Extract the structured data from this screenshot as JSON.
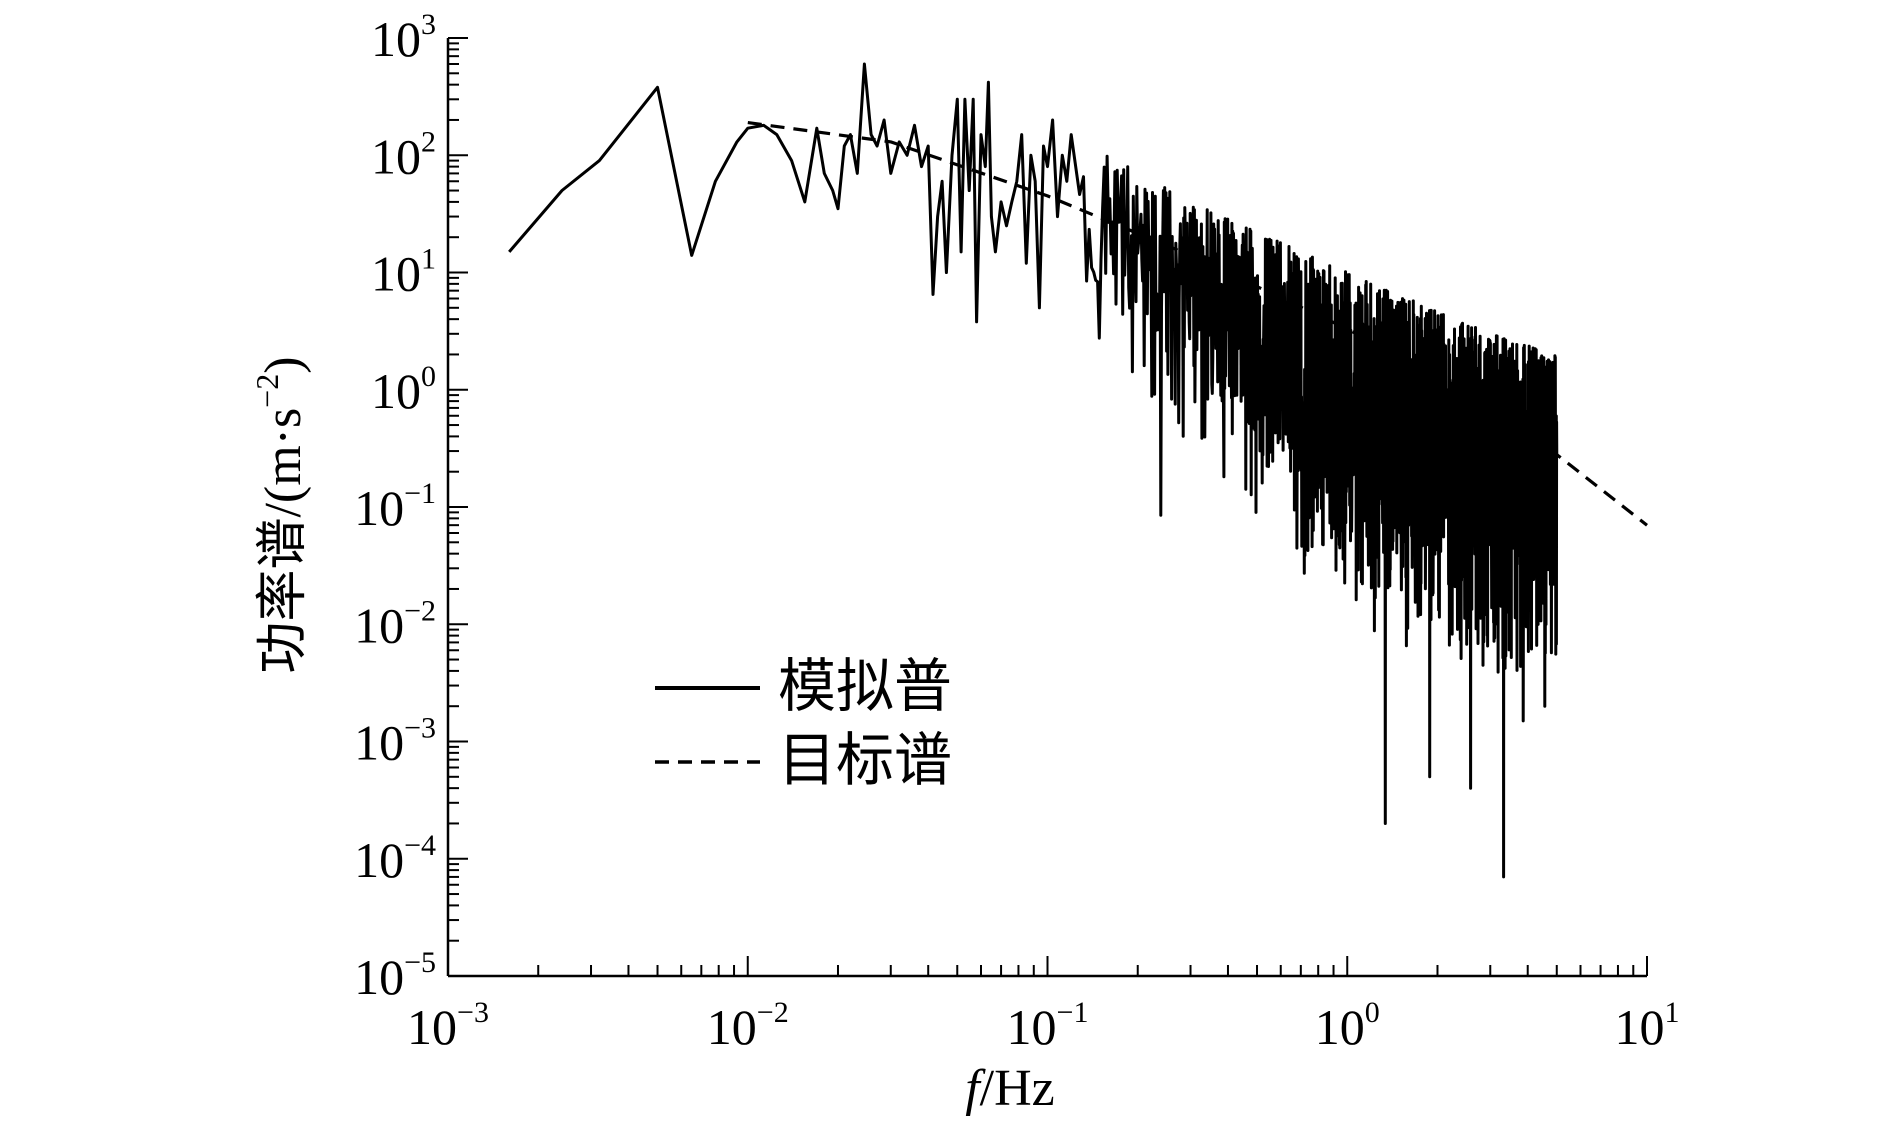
{
  "chart_data": {
    "type": "line",
    "title": "",
    "xlabel_italic": "f",
    "xlabel_unit": "/Hz",
    "ylabel_main": "功率谱/(m·s",
    "ylabel_sup": "−2",
    "ylabel_close": ")",
    "x_scale": "log",
    "y_scale": "log",
    "xlim": [
      0.001,
      10
    ],
    "ylim": [
      1e-05,
      1000
    ],
    "grid": false,
    "legend_position": "lower-left",
    "x_ticks": [
      {
        "value": 0.001,
        "base": "10",
        "exp": "−3"
      },
      {
        "value": 0.01,
        "base": "10",
        "exp": "−2"
      },
      {
        "value": 0.1,
        "base": "10",
        "exp": "−1"
      },
      {
        "value": 1,
        "base": "10",
        "exp": "0"
      },
      {
        "value": 10,
        "base": "10",
        "exp": "1"
      }
    ],
    "y_ticks": [
      {
        "value": 1e-05,
        "base": "10",
        "exp": "−5"
      },
      {
        "value": 0.0001,
        "base": "10",
        "exp": "−4"
      },
      {
        "value": 0.001,
        "base": "10",
        "exp": "−3"
      },
      {
        "value": 0.01,
        "base": "10",
        "exp": "−2"
      },
      {
        "value": 0.1,
        "base": "10",
        "exp": "−1"
      },
      {
        "value": 1,
        "base": "10",
        "exp": "0"
      },
      {
        "value": 10,
        "base": "10",
        "exp": "1"
      },
      {
        "value": 100,
        "base": "10",
        "exp": "2"
      },
      {
        "value": 1000,
        "base": "10",
        "exp": "3"
      }
    ],
    "series": [
      {
        "name": "模拟普",
        "style": "solid",
        "color": "#000000",
        "points": [
          [
            0.0016,
            15
          ],
          [
            0.0024,
            50
          ],
          [
            0.0032,
            90
          ],
          [
            0.005,
            380
          ],
          [
            0.0065,
            14
          ],
          [
            0.0078,
            60
          ],
          [
            0.0092,
            130
          ],
          [
            0.01,
            170
          ],
          [
            0.0113,
            180
          ],
          [
            0.0125,
            150
          ],
          [
            0.014,
            90
          ],
          [
            0.0155,
            40
          ],
          [
            0.017,
            170
          ],
          [
            0.018,
            70
          ],
          [
            0.0192,
            50
          ],
          [
            0.02,
            35
          ],
          [
            0.021,
            120
          ],
          [
            0.022,
            150
          ],
          [
            0.0232,
            70
          ],
          [
            0.0245,
            600
          ],
          [
            0.0258,
            150
          ],
          [
            0.027,
            120
          ],
          [
            0.0285,
            200
          ],
          [
            0.03,
            70
          ],
          [
            0.032,
            130
          ],
          [
            0.034,
            100
          ],
          [
            0.036,
            180
          ],
          [
            0.038,
            80
          ],
          [
            0.04,
            120
          ],
          [
            0.0415,
            6.5
          ],
          [
            0.043,
            30
          ],
          [
            0.0445,
            60
          ],
          [
            0.046,
            10
          ],
          [
            0.048,
            100
          ],
          [
            0.05,
            300
          ],
          [
            0.0515,
            15
          ],
          [
            0.053,
            300
          ],
          [
            0.0548,
            50
          ],
          [
            0.0565,
            300
          ],
          [
            0.058,
            3.8
          ],
          [
            0.06,
            150
          ],
          [
            0.062,
            80
          ],
          [
            0.0635,
            420
          ],
          [
            0.065,
            30
          ],
          [
            0.067,
            15
          ],
          [
            0.07,
            40
          ],
          [
            0.073,
            25
          ],
          [
            0.076,
            40
          ],
          [
            0.079,
            60
          ],
          [
            0.082,
            150
          ],
          [
            0.085,
            12
          ],
          [
            0.088,
            100
          ],
          [
            0.091,
            60
          ],
          [
            0.094,
            5
          ],
          [
            0.097,
            120
          ],
          [
            0.1,
            80
          ],
          [
            0.104,
            200
          ],
          [
            0.108,
            30
          ],
          [
            0.112,
            100
          ],
          [
            0.116,
            60
          ]
        ],
        "noisy_segment": {
          "f_start": 0.12,
          "f_end": 5.0,
          "n_points": 1600,
          "envelope_upper": [
            [
              0.12,
              150
            ],
            [
              0.3,
              40
            ],
            [
              1.0,
              10
            ],
            [
              3.0,
              3
            ],
            [
              5.0,
              2
            ]
          ],
          "envelope_lower": [
            [
              0.12,
              4
            ],
            [
              0.3,
              0.3
            ],
            [
              1.0,
              0.01
            ],
            [
              3.0,
              0.003
            ],
            [
              5.0,
              0.005
            ]
          ],
          "extremes": [
            [
              0.24,
              0.085
            ],
            [
              0.5,
              0.09
            ],
            [
              1.35,
              0.0002
            ],
            [
              1.9,
              0.0005
            ],
            [
              2.6,
              0.0004
            ],
            [
              3.35,
              7e-05
            ],
            [
              3.9,
              0.0015
            ],
            [
              4.6,
              0.002
            ]
          ]
        }
      },
      {
        "name": "目标谱",
        "style": "dashed",
        "color": "#000000",
        "points": [
          [
            0.01,
            190
          ],
          [
            0.03,
            130
          ],
          [
            0.1,
            45
          ],
          [
            0.3,
            14
          ],
          [
            1.0,
            3.3
          ],
          [
            3.0,
            0.75
          ],
          [
            5.0,
            0.28
          ],
          [
            10.0,
            0.07
          ]
        ]
      }
    ]
  },
  "legend": {
    "items": [
      {
        "label": "模拟普",
        "style": "solid"
      },
      {
        "label": "目标谱",
        "style": "dashed"
      }
    ]
  }
}
